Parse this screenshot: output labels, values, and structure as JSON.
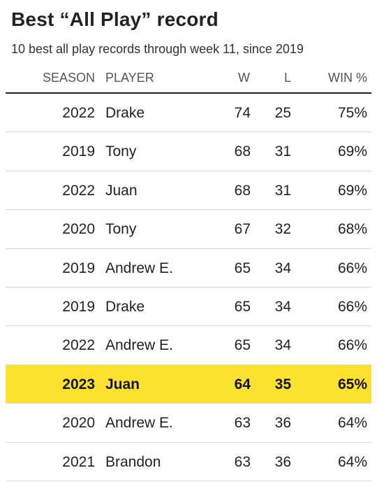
{
  "title": "Best “All Play” record",
  "subtitle": "10 best all play records through week 11, since 2019",
  "columns": {
    "season": "SEASON",
    "player": "PLAYER",
    "w": "W",
    "l": "L",
    "pct": "WIN %"
  },
  "colors": {
    "highlight": "#fde12f",
    "rule": "#222222",
    "divider": "#d9d9d9"
  },
  "chart_data": {
    "type": "table",
    "title": "Best “All Play” record",
    "subtitle": "10 best all play records through week 11, since 2019",
    "columns": [
      "SEASON",
      "PLAYER",
      "W",
      "L",
      "WIN %"
    ],
    "highlighted_row": 7,
    "rows": [
      {
        "season": "2022",
        "player": "Drake",
        "w": "74",
        "l": "25",
        "pct": "75%"
      },
      {
        "season": "2019",
        "player": "Tony",
        "w": "68",
        "l": "31",
        "pct": "69%"
      },
      {
        "season": "2022",
        "player": "Juan",
        "w": "68",
        "l": "31",
        "pct": "69%"
      },
      {
        "season": "2020",
        "player": "Tony",
        "w": "67",
        "l": "32",
        "pct": "68%"
      },
      {
        "season": "2019",
        "player": "Andrew E.",
        "w": "65",
        "l": "34",
        "pct": "66%"
      },
      {
        "season": "2019",
        "player": "Drake",
        "w": "65",
        "l": "34",
        "pct": "66%"
      },
      {
        "season": "2022",
        "player": "Andrew E.",
        "w": "65",
        "l": "34",
        "pct": "66%"
      },
      {
        "season": "2023",
        "player": "Juan",
        "w": "64",
        "l": "35",
        "pct": "65%"
      },
      {
        "season": "2020",
        "player": "Andrew E.",
        "w": "63",
        "l": "36",
        "pct": "64%"
      },
      {
        "season": "2021",
        "player": "Brandon",
        "w": "63",
        "l": "36",
        "pct": "64%"
      }
    ]
  }
}
